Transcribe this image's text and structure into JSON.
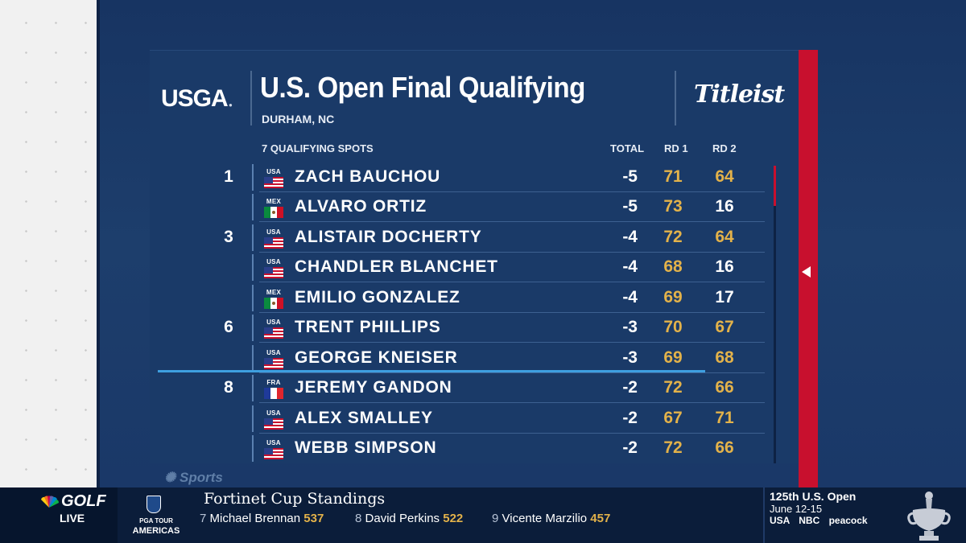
{
  "header": {
    "org_logo": "USGA",
    "title": "U.S. Open Final Qualifying",
    "location": "DURHAM, NC",
    "sponsor": "Titleist"
  },
  "columns": {
    "spots": "7 QUALIFYING SPOTS",
    "total": "TOTAL",
    "rd1": "RD 1",
    "rd2": "RD 2"
  },
  "rows": [
    {
      "pos": "1",
      "country": "USA",
      "name": "ZACH BAUCHOU",
      "total": "-5",
      "rd1": "71",
      "rd2": "64",
      "rd1_color": "gold",
      "rd2_color": "gold"
    },
    {
      "pos": "",
      "country": "MEX",
      "name": "ALVARO ORTIZ",
      "total": "-5",
      "rd1": "73",
      "rd2": "16",
      "rd1_color": "gold",
      "rd2_color": "white"
    },
    {
      "pos": "3",
      "country": "USA",
      "name": "ALISTAIR DOCHERTY",
      "total": "-4",
      "rd1": "72",
      "rd2": "64",
      "rd1_color": "gold",
      "rd2_color": "gold"
    },
    {
      "pos": "",
      "country": "USA",
      "name": "CHANDLER BLANCHET",
      "total": "-4",
      "rd1": "68",
      "rd2": "16",
      "rd1_color": "gold",
      "rd2_color": "white"
    },
    {
      "pos": "",
      "country": "MEX",
      "name": "EMILIO GONZALEZ",
      "total": "-4",
      "rd1": "69",
      "rd2": "17",
      "rd1_color": "gold",
      "rd2_color": "white"
    },
    {
      "pos": "6",
      "country": "USA",
      "name": "TRENT PHILLIPS",
      "total": "-3",
      "rd1": "70",
      "rd2": "67",
      "rd1_color": "gold",
      "rd2_color": "gold"
    },
    {
      "pos": "",
      "country": "USA",
      "name": "GEORGE KNEISER",
      "total": "-3",
      "rd1": "69",
      "rd2": "68",
      "rd1_color": "gold",
      "rd2_color": "gold"
    },
    {
      "pos": "8",
      "country": "FRA",
      "name": "JEREMY GANDON",
      "total": "-2",
      "rd1": "72",
      "rd2": "66",
      "rd1_color": "gold",
      "rd2_color": "gold"
    },
    {
      "pos": "",
      "country": "USA",
      "name": "ALEX SMALLEY",
      "total": "-2",
      "rd1": "67",
      "rd2": "71",
      "rd1_color": "gold",
      "rd2_color": "gold"
    },
    {
      "pos": "",
      "country": "USA",
      "name": "WEBB SIMPSON",
      "total": "-2",
      "rd1": "72",
      "rd2": "66",
      "rd1_color": "gold",
      "rd2_color": "gold"
    }
  ],
  "watermark": "Sports",
  "ticker": {
    "network": "GOLF",
    "live": "LIVE",
    "tour_line1": "PGA TOUR",
    "tour_line2": "AMERICAS",
    "title": "Fortinet Cup Standings",
    "items": [
      {
        "rank": "7",
        "name": "Michael Brennan",
        "points": "537"
      },
      {
        "rank": "8",
        "name": "David Perkins",
        "points": "522"
      },
      {
        "rank": "9",
        "name": "Vicente Marzilio",
        "points": "457"
      }
    ]
  },
  "promo": {
    "title": "125th U.S. Open",
    "dates": "June 12-15",
    "networks": [
      "USA",
      "NBC",
      "peacock"
    ]
  },
  "colors": {
    "gold": "#e3b24a",
    "red": "#c8102e",
    "board": "#1a3a68",
    "cut_line": "#3e9fe0"
  }
}
